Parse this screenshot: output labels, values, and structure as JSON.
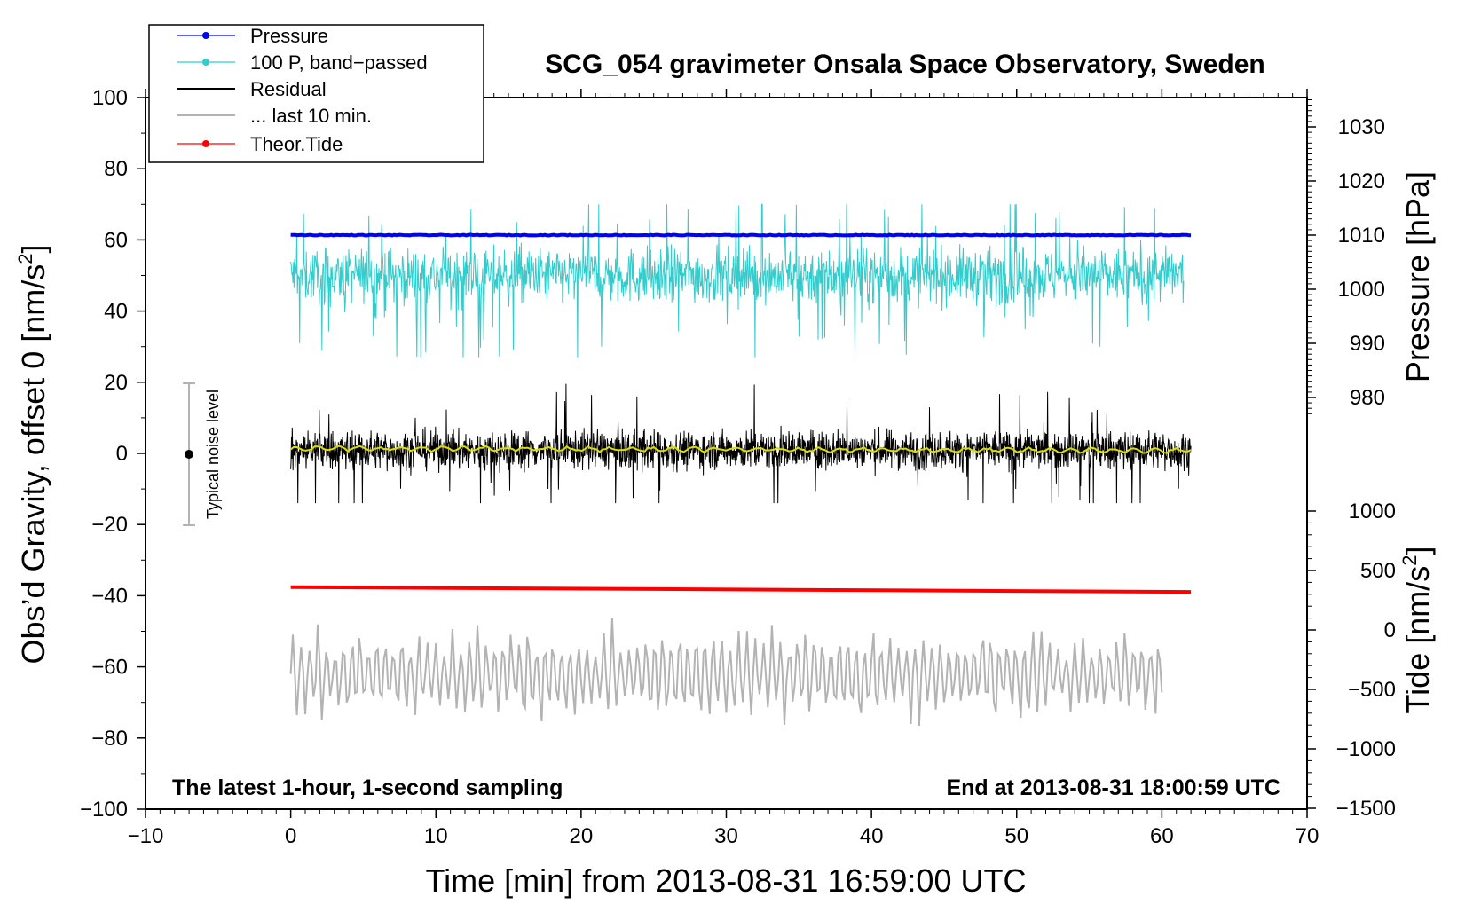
{
  "chart_data": {
    "type": "line",
    "title": "SCG_054 gravimeter Onsala Space Observatory, Sweden",
    "annotations": {
      "left_note": "The latest 1-hour, 1-second sampling",
      "right_note": "End at 2013-08-31 18:00:59 UTC",
      "noise_label": "Typical noise level"
    },
    "xlabel": "Time [min] from 2013-08-31 16:59:00 UTC",
    "xlim": [
      -10,
      70
    ],
    "xticks": [
      "−10",
      "0",
      "10",
      "20",
      "30",
      "40",
      "50",
      "60",
      "70"
    ],
    "ylabel_main": "Obs’d Gravity, offset 0 [nm/s",
    "ylabel_main_sup": "2",
    "ylabel_main_close": "]",
    "ylim": [
      -100,
      100
    ],
    "yticks": [
      "−100",
      "−80",
      "−60",
      "−40",
      "−20",
      "0",
      "20",
      "40",
      "60",
      "80",
      "100"
    ],
    "pressure_axis": {
      "label": "Pressure [hPa]",
      "ticks": [
        "980",
        "990",
        "1000",
        "1010",
        "1020",
        "1030"
      ]
    },
    "tide_axis": {
      "label": "Tide [nm/s",
      "label_sup": "2",
      "label_close": "]",
      "ticks": [
        "−1500",
        "−1000",
        "−500",
        "0",
        "500",
        "1000"
      ]
    },
    "legend": {
      "placement": "top-left",
      "entries": [
        "Pressure",
        "100 P, band−passed",
        "Residual",
        "... last 10 min.",
        "Theor.Tide"
      ]
    },
    "series": [
      {
        "name": "Pressure",
        "color": "#0000ff",
        "axis": "pressure_hPa",
        "x_range": [
          0,
          62
        ],
        "level": 1010
      },
      {
        "name": "100 P, band−passed",
        "color": "#33cccc",
        "axis": "gravity_nm_s2",
        "x_range": [
          0,
          61.5
        ],
        "level": 50,
        "min": 27,
        "max": 70
      },
      {
        "name": "Residual",
        "color": "#000000",
        "axis": "gravity_nm_s2",
        "x_range": [
          0,
          62
        ],
        "level": 1,
        "min": -14,
        "max": 20
      },
      {
        "name": "... last 10 min.",
        "color": "#b3b3b3",
        "axis": "gravity_nm_s2",
        "x_range": [
          0,
          60
        ],
        "level": -62,
        "min": -77,
        "max": -46
      },
      {
        "name": "Theor.Tide",
        "color": "#ff0000",
        "axis": "tide_nm_s2",
        "x_range": [
          0,
          62
        ],
        "start": 360,
        "end": 320
      }
    ],
    "smoothed_residual_color": "#dddd00",
    "noise_bar": {
      "x": -7,
      "center": 0,
      "low": -20,
      "high": 20,
      "color": "#b3b3b3"
    },
    "grid": false
  }
}
